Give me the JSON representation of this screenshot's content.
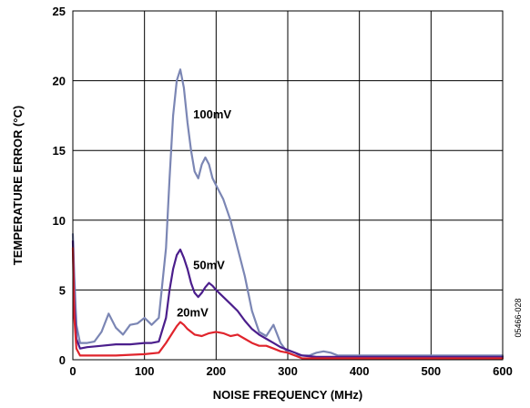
{
  "chart_data": {
    "type": "line",
    "xlabel": "NOISE FREQUENCY (MHz)",
    "ylabel": "TEMPERATURE ERROR (°C)",
    "xlim": [
      0,
      600
    ],
    "ylim": [
      0,
      25
    ],
    "xticks": [
      0,
      100,
      200,
      300,
      400,
      500,
      600
    ],
    "yticks": [
      0,
      5,
      10,
      15,
      20,
      25
    ],
    "grid": true,
    "figure_id": "05466-028",
    "series": [
      {
        "name": "100mV",
        "color": "#7b86b4",
        "x": [
          0,
          2,
          5,
          10,
          20,
          30,
          40,
          50,
          60,
          70,
          80,
          90,
          100,
          110,
          120,
          130,
          135,
          140,
          145,
          150,
          155,
          160,
          165,
          170,
          175,
          180,
          185,
          190,
          195,
          200,
          205,
          210,
          220,
          230,
          240,
          250,
          260,
          270,
          280,
          290,
          300,
          310,
          320,
          330,
          340,
          350,
          360,
          370,
          380,
          400,
          450,
          500,
          550,
          600
        ],
        "y": [
          9.0,
          6.0,
          2.5,
          1.2,
          1.2,
          1.3,
          2.0,
          3.3,
          2.3,
          1.8,
          2.5,
          2.6,
          3.0,
          2.5,
          3.0,
          8.0,
          13.0,
          17.5,
          20.0,
          20.8,
          19.5,
          17.0,
          15.0,
          13.5,
          13.0,
          14.0,
          14.5,
          14.0,
          13.0,
          12.5,
          12.0,
          11.5,
          10.0,
          8.0,
          6.0,
          3.5,
          2.0,
          1.7,
          2.5,
          1.2,
          0.5,
          0.3,
          0.3,
          0.3,
          0.5,
          0.6,
          0.5,
          0.3,
          0.3,
          0.3,
          0.3,
          0.3,
          0.3,
          0.3
        ]
      },
      {
        "name": "50mV",
        "color": "#4b1e8c",
        "x": [
          0,
          2,
          5,
          10,
          20,
          40,
          60,
          80,
          100,
          110,
          120,
          130,
          135,
          140,
          145,
          150,
          155,
          160,
          165,
          170,
          175,
          180,
          185,
          190,
          195,
          200,
          210,
          220,
          230,
          240,
          250,
          260,
          270,
          280,
          290,
          300,
          310,
          320,
          340,
          400,
          500,
          600
        ],
        "y": [
          8.5,
          4.0,
          1.5,
          0.8,
          0.9,
          1.0,
          1.1,
          1.1,
          1.2,
          1.2,
          1.3,
          3.0,
          5.0,
          6.5,
          7.5,
          7.9,
          7.3,
          6.5,
          5.5,
          4.8,
          4.5,
          4.8,
          5.2,
          5.5,
          5.3,
          5.0,
          4.5,
          4.0,
          3.5,
          2.8,
          2.2,
          1.8,
          1.5,
          1.2,
          0.9,
          0.7,
          0.5,
          0.3,
          0.2,
          0.2,
          0.2,
          0.2
        ]
      },
      {
        "name": "20mV",
        "color": "#e0242c",
        "x": [
          0,
          2,
          5,
          10,
          30,
          60,
          100,
          120,
          130,
          140,
          145,
          150,
          155,
          160,
          170,
          180,
          190,
          200,
          210,
          220,
          230,
          240,
          250,
          260,
          270,
          280,
          290,
          300,
          310,
          320,
          400,
          500,
          600
        ],
        "y": [
          8.0,
          3.0,
          0.8,
          0.3,
          0.3,
          0.3,
          0.4,
          0.5,
          1.2,
          2.0,
          2.4,
          2.7,
          2.5,
          2.2,
          1.8,
          1.7,
          1.9,
          2.0,
          1.9,
          1.7,
          1.8,
          1.5,
          1.2,
          1.0,
          1.0,
          0.8,
          0.6,
          0.5,
          0.3,
          0.1,
          0.1,
          0.1,
          0.1
        ]
      }
    ],
    "annotations": [
      {
        "text": "100mV",
        "x": 168,
        "y": 17.3
      },
      {
        "text": "50mV",
        "x": 168,
        "y": 6.5
      },
      {
        "text": "20mV",
        "x": 145,
        "y": 3.1
      }
    ]
  }
}
